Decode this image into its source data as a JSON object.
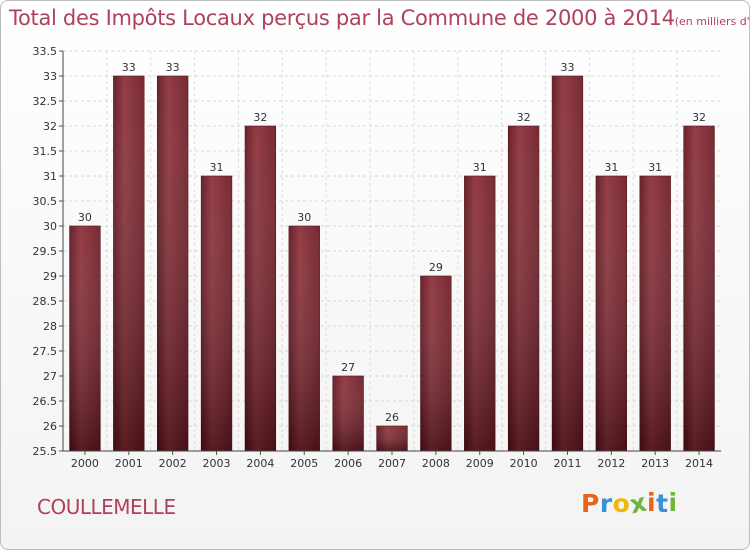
{
  "chart_data": {
    "type": "bar",
    "title": "Total des Impôts Locaux perçus par la Commune de 2000 à 2014",
    "subtitle": "(en milliers d'€)",
    "categories": [
      "2000",
      "2001",
      "2002",
      "2003",
      "2004",
      "2005",
      "2006",
      "2007",
      "2008",
      "2009",
      "2010",
      "2011",
      "2012",
      "2013",
      "2014"
    ],
    "values": [
      30,
      33,
      33,
      31,
      32,
      30,
      27,
      26,
      29,
      31,
      32,
      33,
      31,
      31,
      32
    ],
    "data_labels": [
      "30",
      "33",
      "33",
      "31",
      "32",
      "30",
      "27",
      "26",
      "29",
      "31",
      "32",
      "33",
      "31",
      "31",
      "32"
    ],
    "ylim": [
      25.5,
      33.5
    ],
    "yticks": [
      25.5,
      26,
      26.5,
      27,
      27.5,
      28,
      28.5,
      29,
      29.5,
      30,
      30.5,
      31,
      31.5,
      32,
      32.5,
      33,
      33.5
    ],
    "ytick_labels": [
      "25.5",
      "26",
      "26.5",
      "27",
      "27.5",
      "28",
      "28.5",
      "29",
      "29.5",
      "30",
      "30.5",
      "31",
      "31.5",
      "32",
      "32.5",
      "33",
      "33.5"
    ],
    "xlabel": "",
    "ylabel": "",
    "grid": true,
    "bar_color": "#7a1e2a"
  },
  "commune": "COULLEMELLE",
  "logo": {
    "letters": [
      "P",
      "r",
      "o",
      "x",
      "i",
      "t",
      "i"
    ],
    "colors": [
      "#e8631c",
      "#3a93d6",
      "#f2b705",
      "#6fb43f",
      "#e8631c",
      "#3a93d6",
      "#6fb43f"
    ]
  }
}
